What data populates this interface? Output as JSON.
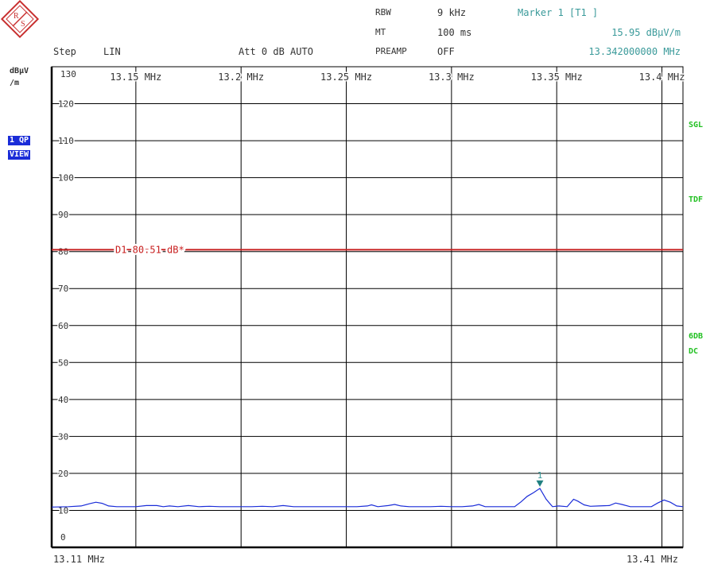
{
  "header": {
    "rbw_label": "RBW",
    "rbw_value": "9 kHz",
    "mt_label": "MT",
    "mt_value": "100 ms",
    "preamp_label": "PREAMP",
    "preamp_value": "OFF",
    "step_label": "Step",
    "step_value": "LIN",
    "att": "Att 0 dB AUTO",
    "marker_title": "Marker 1 [T1 ]",
    "marker_level": "15.95 dBµV/m",
    "marker_freq": "13.342000000 MHz"
  },
  "unit_label_line1": "dBµV",
  "unit_label_line2": "/m",
  "side_left": {
    "trace": "1 QP",
    "view": "VIEW"
  },
  "side_right": {
    "sgl": "SGL",
    "tdf": "TDF",
    "sixdb": "6DB",
    "dc": "DC"
  },
  "colors": {
    "trace": "#1a2cd8",
    "limit_line": "#c82020",
    "marker": "#208080",
    "grid": "#000000",
    "status": "#22c022"
  },
  "chart_data": {
    "type": "line",
    "xlim": [
      13.11,
      13.41
    ],
    "ylim": [
      0,
      130
    ],
    "x_unit": "MHz",
    "y_unit": "dBµV/m",
    "start_label": "13.11 MHz",
    "stop_label": "13.41 MHz",
    "x_ticks": [
      {
        "value": 13.15,
        "label": "13.15 MHz"
      },
      {
        "value": 13.2,
        "label": "13.2 MHz"
      },
      {
        "value": 13.25,
        "label": "13.25 MHz"
      },
      {
        "value": 13.3,
        "label": "13.3 MHz"
      },
      {
        "value": 13.35,
        "label": "13.35 MHz"
      },
      {
        "value": 13.4,
        "label": "13.4 MHz"
      }
    ],
    "y_ticks": [
      {
        "value": 130,
        "label": "130"
      },
      {
        "value": 120,
        "label": "120"
      },
      {
        "value": 110,
        "label": "110"
      },
      {
        "value": 100,
        "label": "100"
      },
      {
        "value": 90,
        "label": "90"
      },
      {
        "value": 80,
        "label": "80"
      },
      {
        "value": 70,
        "label": "70"
      },
      {
        "value": 60,
        "label": "60"
      },
      {
        "value": 50,
        "label": "50"
      },
      {
        "value": 40,
        "label": "40"
      },
      {
        "value": 30,
        "label": "30"
      },
      {
        "value": 20,
        "label": "20"
      },
      {
        "value": 10,
        "label": "10"
      },
      {
        "value": 0,
        "label": "0"
      }
    ],
    "limit_line": {
      "value": 80.51,
      "label": "D1 80.51 dB*"
    },
    "marker": {
      "label": "1",
      "x": 13.342,
      "y": 15.95
    },
    "series": [
      {
        "x": [
          13.11,
          13.118,
          13.124,
          13.128,
          13.131,
          13.134,
          13.137,
          13.141,
          13.145,
          13.15,
          13.155,
          13.16,
          13.163,
          13.166,
          13.17,
          13.175,
          13.18,
          13.185,
          13.19,
          13.195,
          13.2,
          13.205,
          13.21,
          13.215,
          13.22,
          13.225,
          13.23,
          13.235,
          13.24,
          13.245,
          13.25,
          13.255,
          13.26,
          13.262,
          13.265,
          13.27,
          13.273,
          13.276,
          13.28,
          13.285,
          13.29,
          13.295,
          13.3,
          13.305,
          13.31,
          13.313,
          13.316,
          13.32,
          13.325,
          13.33,
          13.333,
          13.336,
          13.339,
          13.342,
          13.345,
          13.348,
          13.351,
          13.355,
          13.358,
          13.36,
          13.363,
          13.366,
          13.37,
          13.375,
          13.378,
          13.381,
          13.385,
          13.39,
          13.395,
          13.398,
          13.401,
          13.404,
          13.407,
          13.41
        ],
        "y": [
          10.9,
          11.0,
          11.2,
          11.8,
          12.2,
          11.9,
          11.2,
          11.0,
          11.0,
          11.0,
          11.3,
          11.3,
          11.0,
          11.2,
          11.0,
          11.3,
          11.0,
          11.1,
          11.0,
          11.0,
          11.0,
          11.0,
          11.1,
          11.0,
          11.3,
          11.0,
          11.0,
          11.0,
          11.0,
          11.0,
          11.0,
          11.0,
          11.2,
          11.5,
          11.0,
          11.3,
          11.6,
          11.2,
          11.0,
          11.0,
          11.0,
          11.1,
          11.0,
          11.0,
          11.2,
          11.6,
          11.0,
          11.0,
          11.0,
          11.0,
          12.3,
          13.8,
          14.8,
          15.95,
          13.0,
          11.0,
          11.2,
          11.0,
          13.0,
          12.5,
          11.5,
          11.1,
          11.2,
          11.3,
          12.0,
          11.6,
          11.0,
          11.0,
          11.0,
          12.0,
          12.8,
          12.2,
          11.2,
          11.0
        ]
      }
    ]
  }
}
